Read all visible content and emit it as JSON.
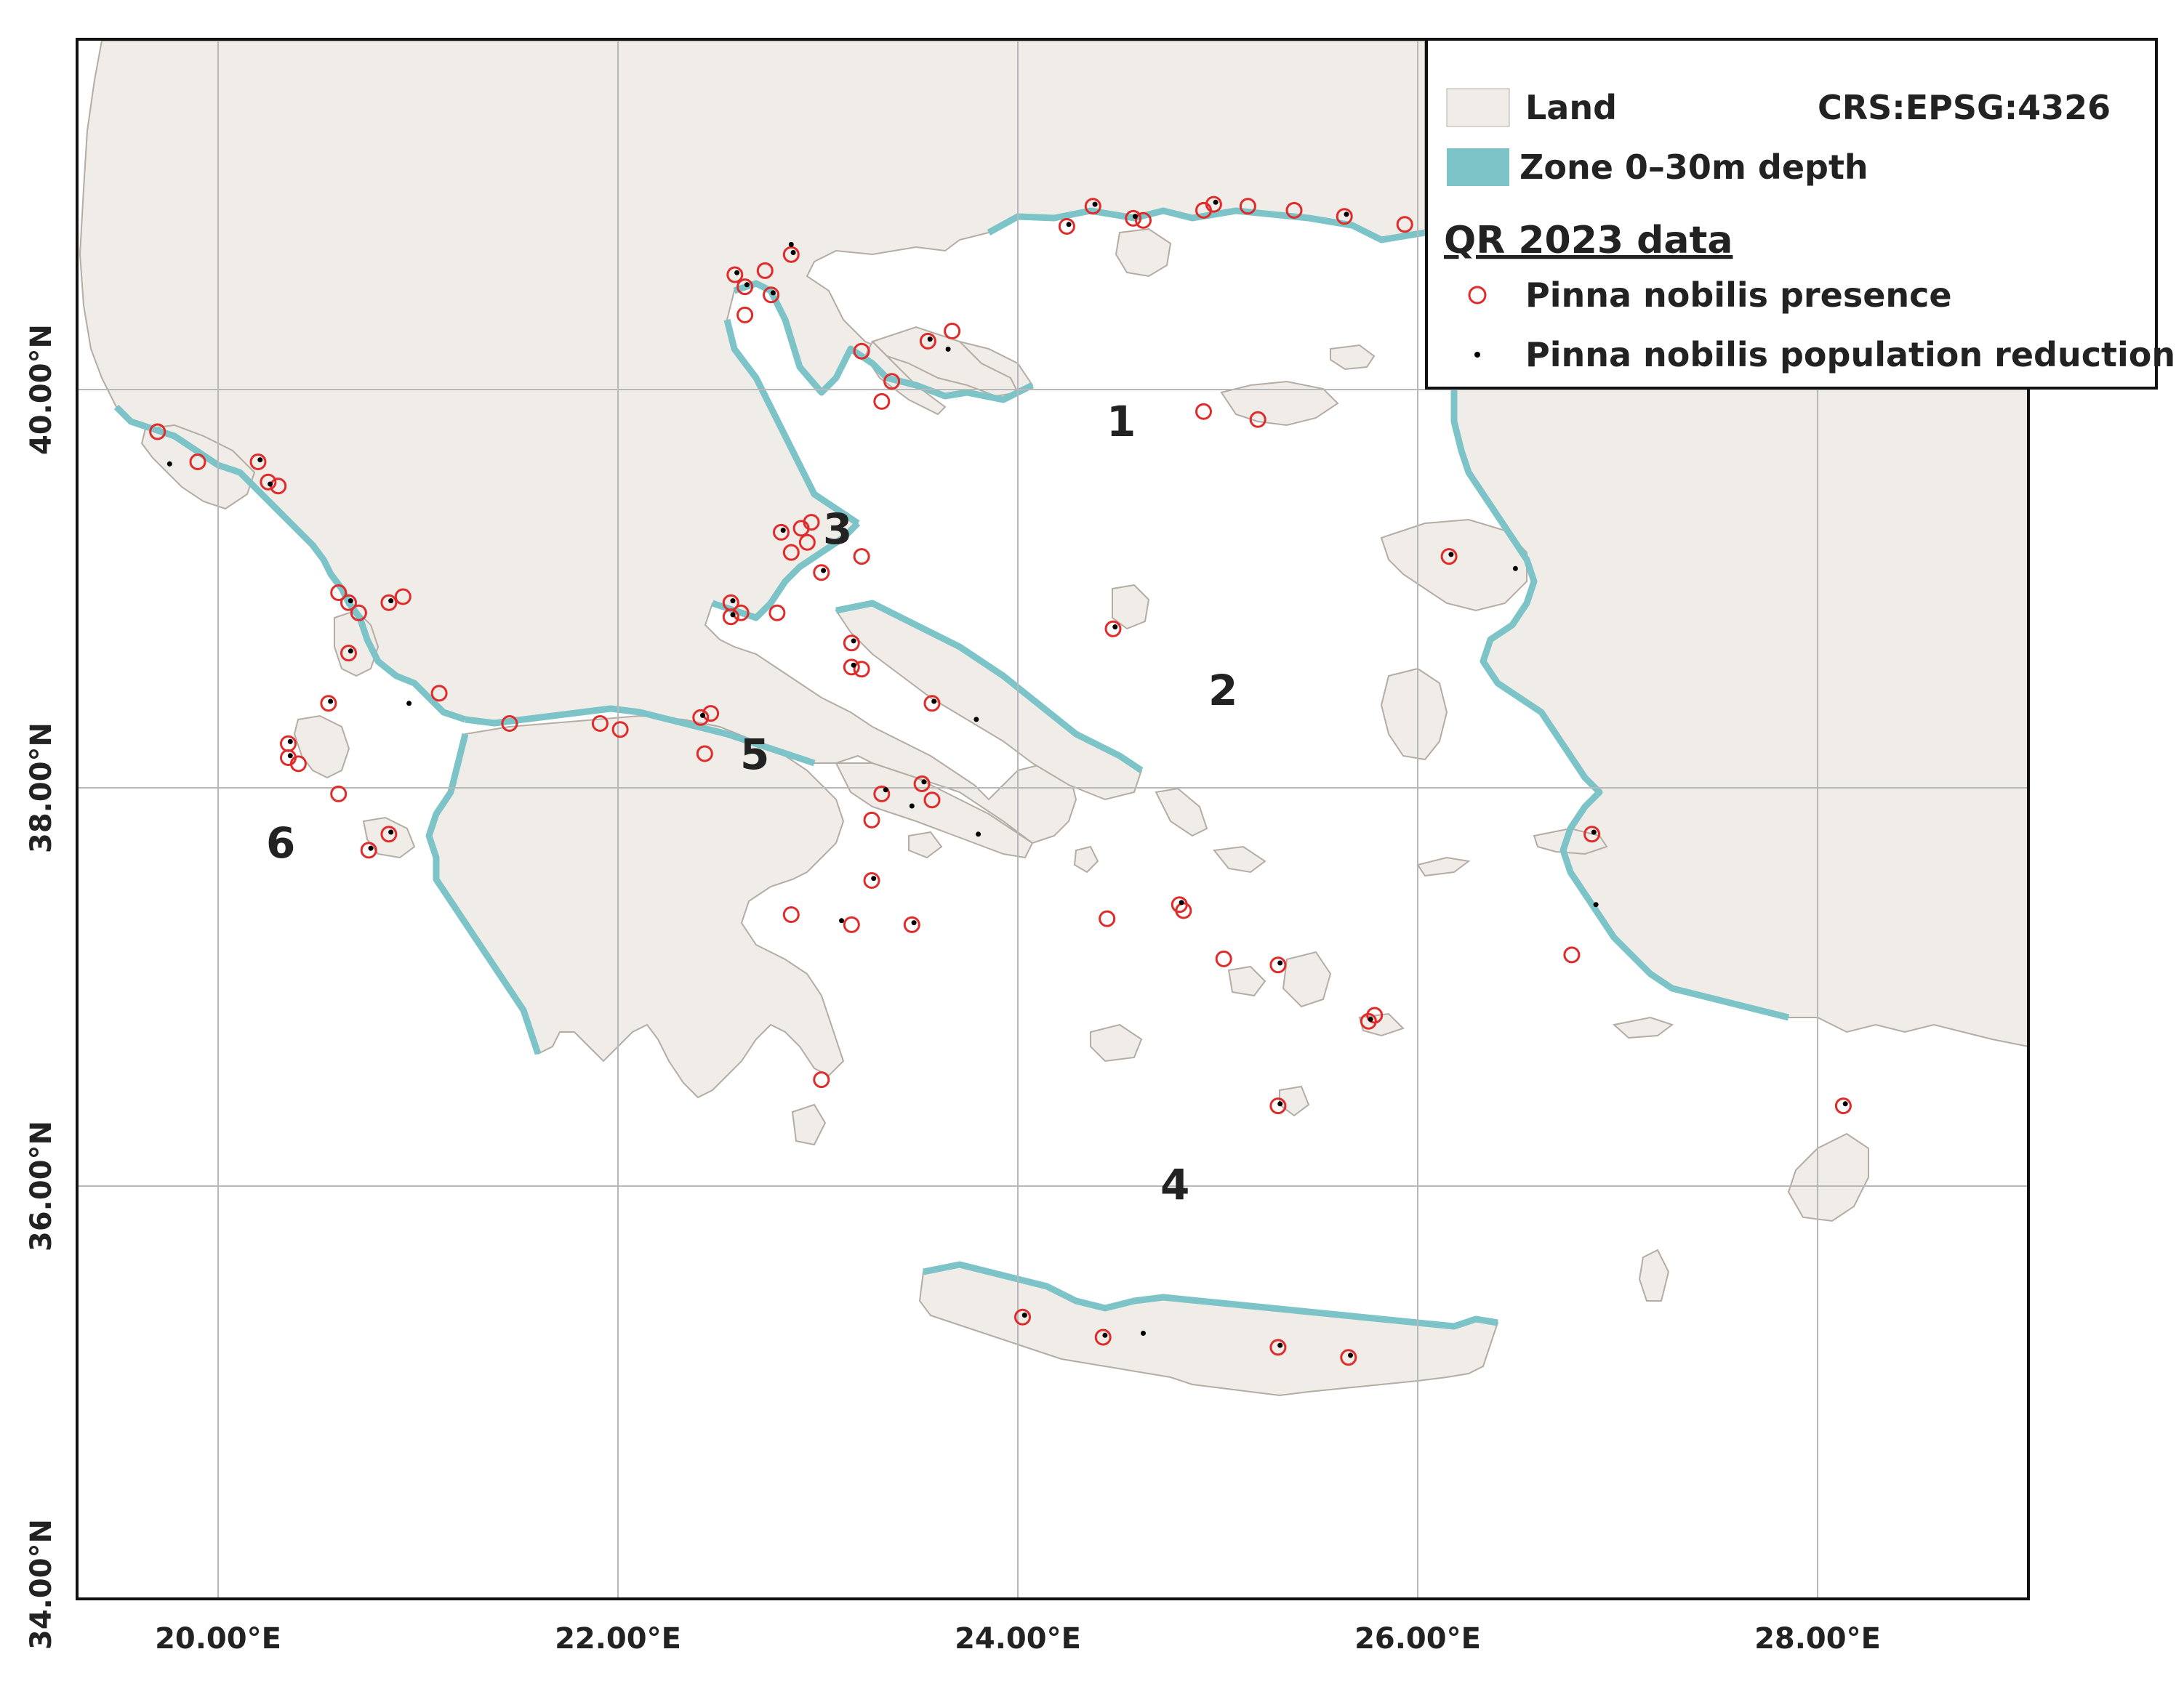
{
  "colors": {
    "land": "#f0ece8",
    "land_stroke": "#b5aca4",
    "zone": "#7cc4c8",
    "presence": "#e02b2b",
    "reduction": "#000000",
    "grid": "#b8b8b8",
    "frame": "#111111"
  },
  "axes": {
    "lon_labels": [
      "20.00°E",
      "22.00°E",
      "24.00°E",
      "26.00°E",
      "28.00°E"
    ],
    "lat_labels": [
      "40.00°N",
      "38.00°N",
      "36.00°N",
      "34.00°N"
    ]
  },
  "legend": {
    "land_label": "Land",
    "crs_label": "CRS:EPSG:4326",
    "zone_label": "Zone 0–30m depth",
    "data_heading": "QR 2023 data",
    "presence_label": "Pinna nobilis presence",
    "reduction_label": "Pinna nobilis population reduction"
  },
  "region_labels": [
    "1",
    "2",
    "3",
    "4",
    "5",
    "6"
  ],
  "map_data": {
    "extent": {
      "lon_min": 19.4,
      "lon_max": 29.1,
      "lat_min": 34.0,
      "lat_max": 41.75
    },
    "presence_points": [
      [
        24.45,
        40.92
      ],
      [
        24.32,
        40.82
      ],
      [
        24.65,
        40.86
      ],
      [
        24.7,
        40.85
      ],
      [
        25.0,
        40.9
      ],
      [
        25.05,
        40.93
      ],
      [
        25.22,
        40.92
      ],
      [
        25.45,
        40.9
      ],
      [
        25.7,
        40.87
      ],
      [
        26.0,
        40.83
      ],
      [
        22.67,
        40.58
      ],
      [
        22.72,
        40.52
      ],
      [
        22.82,
        40.6
      ],
      [
        22.95,
        40.68
      ],
      [
        22.85,
        40.48
      ],
      [
        22.72,
        40.38
      ],
      [
        23.3,
        40.2
      ],
      [
        23.45,
        40.05
      ],
      [
        23.63,
        40.25
      ],
      [
        23.75,
        40.3
      ],
      [
        23.4,
        39.95
      ],
      [
        25.0,
        39.9
      ],
      [
        25.27,
        39.86
      ],
      [
        19.8,
        39.8
      ],
      [
        20.0,
        39.65
      ],
      [
        20.3,
        39.65
      ],
      [
        20.35,
        39.55
      ],
      [
        20.4,
        39.53
      ],
      [
        22.9,
        39.3
      ],
      [
        23.0,
        39.32
      ],
      [
        23.05,
        39.35
      ],
      [
        23.03,
        39.25
      ],
      [
        22.95,
        39.2
      ],
      [
        23.3,
        39.18
      ],
      [
        23.1,
        39.1
      ],
      [
        22.65,
        38.95
      ],
      [
        22.7,
        38.9
      ],
      [
        22.65,
        38.88
      ],
      [
        22.88,
        38.9
      ],
      [
        23.25,
        38.75
      ],
      [
        23.25,
        38.63
      ],
      [
        23.3,
        38.62
      ],
      [
        23.65,
        38.45
      ],
      [
        24.55,
        38.82
      ],
      [
        26.22,
        39.18
      ],
      [
        20.7,
        39.0
      ],
      [
        20.75,
        38.95
      ],
      [
        20.8,
        38.9
      ],
      [
        20.95,
        38.95
      ],
      [
        21.02,
        38.98
      ],
      [
        20.75,
        38.7
      ],
      [
        21.2,
        38.5
      ],
      [
        21.55,
        38.35
      ],
      [
        22.1,
        38.32
      ],
      [
        22.0,
        38.35
      ],
      [
        22.5,
        38.38
      ],
      [
        22.55,
        38.4
      ],
      [
        22.52,
        38.2
      ],
      [
        20.45,
        38.25
      ],
      [
        20.45,
        38.18
      ],
      [
        20.5,
        38.15
      ],
      [
        20.65,
        38.45
      ],
      [
        20.7,
        38.0
      ],
      [
        20.95,
        37.8
      ],
      [
        20.85,
        37.72
      ],
      [
        23.35,
        37.87
      ],
      [
        23.4,
        38.0
      ],
      [
        23.6,
        38.05
      ],
      [
        23.65,
        37.97
      ],
      [
        23.35,
        37.57
      ],
      [
        23.25,
        37.35
      ],
      [
        23.55,
        37.35
      ],
      [
        22.95,
        37.4
      ],
      [
        24.52,
        37.38
      ],
      [
        24.88,
        37.45
      ],
      [
        24.9,
        37.42
      ],
      [
        25.1,
        37.18
      ],
      [
        25.37,
        37.15
      ],
      [
        25.82,
        36.87
      ],
      [
        25.85,
        36.9
      ],
      [
        26.83,
        37.2
      ],
      [
        26.93,
        37.8
      ],
      [
        23.1,
        36.58
      ],
      [
        25.37,
        36.45
      ],
      [
        28.18,
        36.45
      ],
      [
        24.1,
        35.4
      ],
      [
        24.5,
        35.3
      ],
      [
        25.37,
        35.25
      ],
      [
        25.72,
        35.2
      ]
    ],
    "reduction_points": [
      [
        24.46,
        40.93
      ],
      [
        24.33,
        40.83
      ],
      [
        24.66,
        40.87
      ],
      [
        25.06,
        40.94
      ],
      [
        25.71,
        40.88
      ],
      [
        22.68,
        40.59
      ],
      [
        22.73,
        40.53
      ],
      [
        22.96,
        40.69
      ],
      [
        22.95,
        40.73
      ],
      [
        22.86,
        40.49
      ],
      [
        23.64,
        40.26
      ],
      [
        23.73,
        40.21
      ],
      [
        19.86,
        39.64
      ],
      [
        20.31,
        39.66
      ],
      [
        20.36,
        39.54
      ],
      [
        22.91,
        39.31
      ],
      [
        23.11,
        39.11
      ],
      [
        22.66,
        38.96
      ],
      [
        22.66,
        38.89
      ],
      [
        23.26,
        38.76
      ],
      [
        23.26,
        38.64
      ],
      [
        23.66,
        38.46
      ],
      [
        23.87,
        38.37
      ],
      [
        24.56,
        38.83
      ],
      [
        26.23,
        39.19
      ],
      [
        26.55,
        39.12
      ],
      [
        20.76,
        38.96
      ],
      [
        20.96,
        38.96
      ],
      [
        20.76,
        38.71
      ],
      [
        21.05,
        38.45
      ],
      [
        22.51,
        38.39
      ],
      [
        20.46,
        38.26
      ],
      [
        20.46,
        38.19
      ],
      [
        20.66,
        38.46
      ],
      [
        20.96,
        37.81
      ],
      [
        20.86,
        37.73
      ],
      [
        23.42,
        38.02
      ],
      [
        23.61,
        38.06
      ],
      [
        23.55,
        37.94
      ],
      [
        23.88,
        37.8
      ],
      [
        23.36,
        37.58
      ],
      [
        23.56,
        37.36
      ],
      [
        23.2,
        37.37
      ],
      [
        24.89,
        37.46
      ],
      [
        25.38,
        37.16
      ],
      [
        25.83,
        36.88
      ],
      [
        26.94,
        37.81
      ],
      [
        26.95,
        37.45
      ],
      [
        25.38,
        36.46
      ],
      [
        28.19,
        36.46
      ],
      [
        24.11,
        35.41
      ],
      [
        24.51,
        35.31
      ],
      [
        24.7,
        35.32
      ],
      [
        25.38,
        35.26
      ],
      [
        25.73,
        35.21
      ]
    ]
  }
}
